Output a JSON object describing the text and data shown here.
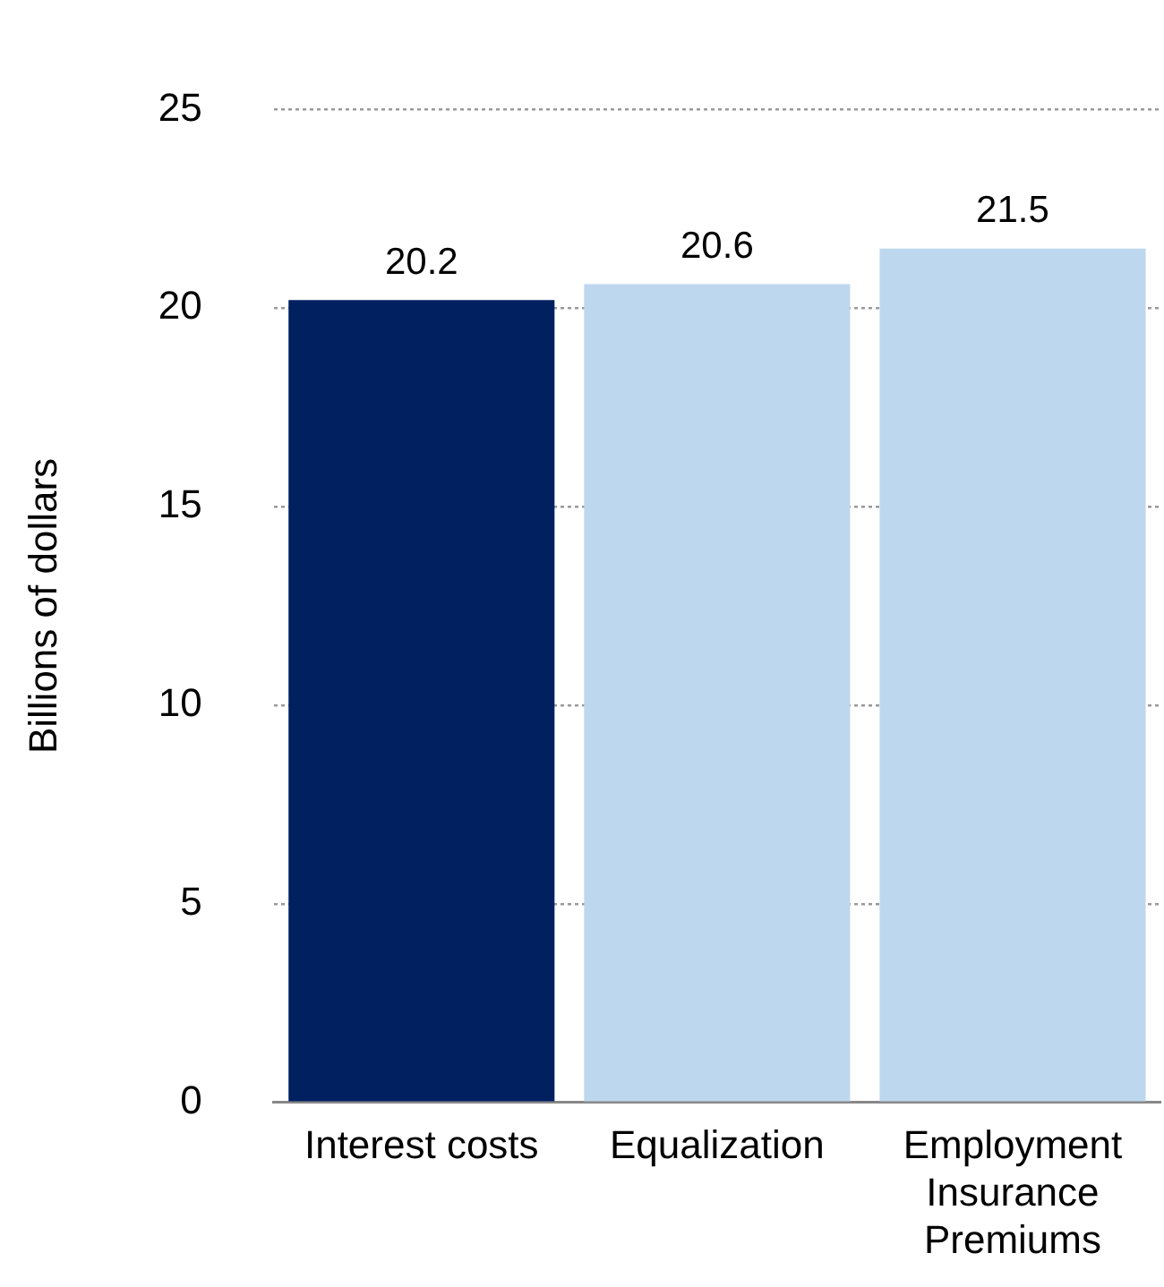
{
  "chart_data": {
    "type": "bar",
    "ylabel": "Billions of dollars",
    "categories": [
      "Interest costs",
      "Equalization",
      "Employment Insurance Premiums"
    ],
    "values": [
      20.2,
      20.6,
      21.5
    ],
    "colors": [
      "#002060",
      "#bdd7ee",
      "#bdd7ee"
    ],
    "ylim": [
      0,
      25
    ],
    "yticks": [
      0,
      5,
      10,
      15,
      20,
      25
    ],
    "grid": "y",
    "data_labels": true,
    "legend": false
  }
}
